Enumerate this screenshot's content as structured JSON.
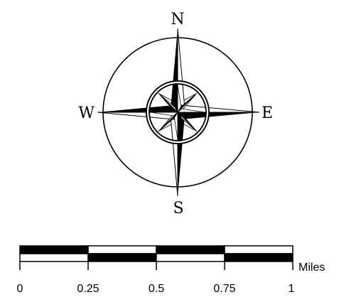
{
  "compass": {
    "north_label": "N",
    "east_label": "E",
    "south_label": "S",
    "west_label": "W",
    "fill_color": "#000000",
    "background_color": "#ffffff"
  },
  "scale_bar": {
    "unit": "Miles",
    "ticks": [
      "0",
      "0.25",
      "0.5",
      "0.75",
      "1"
    ],
    "segment_colors": {
      "top": [
        "#000000",
        "#ffffff",
        "#000000",
        "#ffffff"
      ],
      "bottom": [
        "#ffffff",
        "#000000",
        "#ffffff",
        "#000000"
      ]
    }
  }
}
